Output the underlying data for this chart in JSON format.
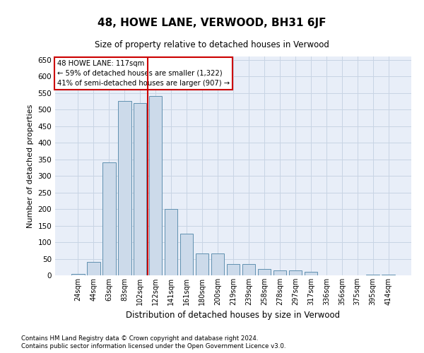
{
  "title": "48, HOWE LANE, VERWOOD, BH31 6JF",
  "subtitle": "Size of property relative to detached houses in Verwood",
  "xlabel": "Distribution of detached houses by size in Verwood",
  "ylabel": "Number of detached properties",
  "footnote1": "Contains HM Land Registry data © Crown copyright and database right 2024.",
  "footnote2": "Contains public sector information licensed under the Open Government Licence v3.0.",
  "annotation_line1": "48 HOWE LANE: 117sqm",
  "annotation_line2": "← 59% of detached houses are smaller (1,322)",
  "annotation_line3": "41% of semi-detached houses are larger (907) →",
  "bar_categories": [
    "24sqm",
    "44sqm",
    "63sqm",
    "83sqm",
    "102sqm",
    "122sqm",
    "141sqm",
    "161sqm",
    "180sqm",
    "200sqm",
    "219sqm",
    "239sqm",
    "258sqm",
    "278sqm",
    "297sqm",
    "317sqm",
    "336sqm",
    "356sqm",
    "375sqm",
    "395sqm",
    "414sqm"
  ],
  "bar_values": [
    5,
    40,
    340,
    525,
    520,
    540,
    200,
    125,
    65,
    65,
    35,
    35,
    20,
    15,
    15,
    10,
    0,
    0,
    0,
    2,
    2
  ],
  "bar_color": "#ccdaea",
  "bar_edge_color": "#6090b0",
  "vline_color": "#cc0000",
  "vline_x": 4.5,
  "annotation_box_color": "#cc0000",
  "grid_color": "#c8d4e4",
  "background_color": "#e8eef8",
  "ylim": [
    0,
    660
  ],
  "yticks": [
    0,
    50,
    100,
    150,
    200,
    250,
    300,
    350,
    400,
    450,
    500,
    550,
    600,
    650
  ]
}
